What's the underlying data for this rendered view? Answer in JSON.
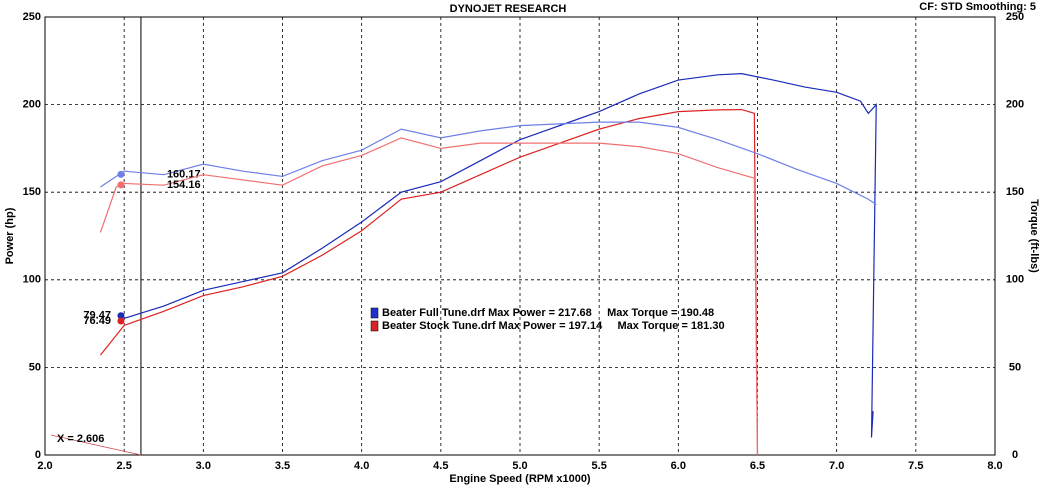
{
  "chart_data": {
    "type": "line",
    "title": "DYNOJET RESEARCH",
    "subtitle": "CF: STD  Smoothing: 5",
    "x_label": "Engine Speed (RPM x1000)",
    "y_label": "Power (hp)",
    "y2_label": "Torque (ft-lbs)",
    "xlim": [
      2,
      8
    ],
    "xticks": [
      {
        "value": 2,
        "label": "2.0"
      },
      {
        "value": 2.5,
        "label": "2.5"
      },
      {
        "value": 3,
        "label": "3.0"
      },
      {
        "value": 3.5,
        "label": "3.5"
      },
      {
        "value": 4,
        "label": "4.0"
      },
      {
        "value": 4.5,
        "label": "4.5"
      },
      {
        "value": 5,
        "label": "5.0"
      },
      {
        "value": 5.5,
        "label": "5.5"
      },
      {
        "value": 6,
        "label": "6.0"
      },
      {
        "value": 6.5,
        "label": "6.5"
      },
      {
        "value": 7,
        "label": "7.0"
      },
      {
        "value": 7.5,
        "label": "7.5"
      },
      {
        "value": 8,
        "label": "8.0"
      }
    ],
    "ylim": [
      0,
      250
    ],
    "yticks": [
      0,
      50,
      100,
      150,
      200,
      250
    ],
    "y2lim": [
      0,
      250
    ],
    "y2ticks": [
      0,
      50,
      100,
      150,
      200,
      250
    ],
    "grid": true,
    "cursor_x": 2.606,
    "cursor_label": "X = 2.606",
    "legend": [
      {
        "text": "Beater Full Tune.drf Max Power = 217.68     Max Torque = 190.48",
        "color": "#2233cc"
      },
      {
        "text": "Beater Stock Tune.drf Max Power = 197.14     Max Torque = 181.30",
        "color": "#dd2222"
      }
    ],
    "series": [
      {
        "color": "#1a2bb8",
        "cursor_value": 79.47,
        "x": [
          2.5,
          2.75,
          3,
          3.25,
          3.5,
          3.75,
          4,
          4.25,
          4.5,
          4.75,
          5,
          5.25,
          5.5,
          5.75,
          6,
          6.25,
          6.4,
          6.6,
          6.8,
          7,
          7.15,
          7.2,
          7.25,
          7.22,
          7.23
        ],
        "values": [
          78,
          85,
          94,
          99,
          104,
          118,
          133,
          150,
          156,
          168,
          180,
          188,
          196,
          206,
          214,
          217,
          217.68,
          214,
          210,
          207,
          202,
          195,
          200,
          10,
          25
        ]
      },
      {
        "color": "#dd2222",
        "cursor_value": 76.49,
        "x": [
          2.35,
          2.5,
          2.75,
          3,
          3.25,
          3.5,
          3.75,
          4,
          4.25,
          4.5,
          4.75,
          5,
          5.25,
          5.5,
          5.75,
          6,
          6.25,
          6.4,
          6.48,
          6.5
        ],
        "values": [
          57,
          74,
          82,
          91,
          96,
          102,
          114,
          128,
          146,
          150,
          160,
          170,
          178,
          186,
          192,
          196,
          197,
          197.14,
          195,
          0
        ]
      },
      {
        "color": "#6f7fe8",
        "axis": "y2",
        "cursor_value": 160.17,
        "x": [
          2.35,
          2.5,
          2.75,
          3,
          3.25,
          3.5,
          3.75,
          4,
          4.25,
          4.5,
          4.75,
          5,
          5.25,
          5.5,
          5.75,
          6,
          6.25,
          6.5,
          6.75,
          7,
          7.2,
          7.25
        ],
        "values": [
          153,
          162,
          160,
          166,
          162,
          159,
          168,
          174,
          186,
          181,
          185,
          188,
          189,
          190,
          190,
          187,
          180,
          172,
          163,
          155,
          146,
          143
        ]
      },
      {
        "color": "#f07070",
        "axis": "y2",
        "cursor_value": 154.16,
        "x": [
          2.35,
          2.45,
          2.5,
          2.75,
          3,
          3.25,
          3.5,
          3.75,
          4,
          4.25,
          4.5,
          4.75,
          5,
          5.25,
          5.5,
          5.75,
          6,
          6.25,
          6.48,
          6.5
        ],
        "values": [
          127,
          153,
          155,
          154,
          160,
          157,
          154,
          165,
          171,
          181,
          175,
          178,
          178,
          178,
          178,
          176,
          172,
          164,
          158,
          0
        ]
      }
    ]
  }
}
